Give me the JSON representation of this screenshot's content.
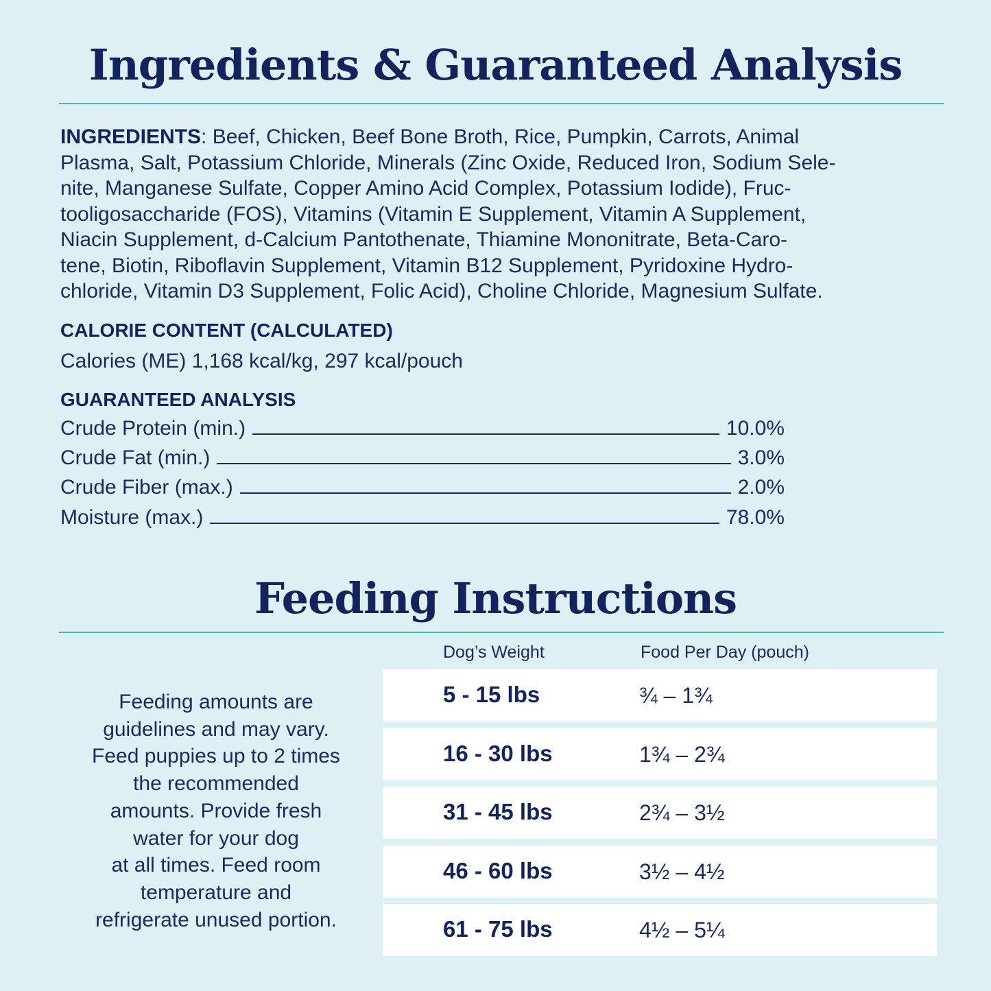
{
  "title": "Ingredients & Guaranteed Analysis",
  "ingredients": {
    "label": "INGREDIENTS",
    "lines": [
      ": Beef, Chicken, Beef Bone Broth, Rice, Pumpkin, Carrots, Animal",
      "Plasma, Salt, Potassium Chloride, Minerals (Zinc Oxide, Reduced Iron, Sodium Sele-",
      "nite, Manganese Sulfate, Copper Amino Acid Complex, Potassium Iodide), Fruc-",
      "tooligosaccharide (FOS), Vitamins (Vitamin E Supplement, Vitamin A Supplement,",
      "Niacin Supplement, d-Calcium Pantothenate, Thiamine Mononitrate, Beta-Caro-",
      "tene, Biotin, Riboflavin Supplement, Vitamin B12 Supplement, Pyridoxine Hydro-",
      "chloride, Vitamin D3 Supplement, Folic Acid), Choline Chloride, Magnesium Sulfate."
    ]
  },
  "calorie": {
    "heading": "CALORIE CONTENT (CALCULATED)",
    "text": "Calories (ME) 1,168 kcal/kg, 297 kcal/pouch"
  },
  "analysis": {
    "heading": "GUARANTEED ANALYSIS",
    "rows": [
      {
        "label": "Crude Protein (min.)",
        "value": "10.0%"
      },
      {
        "label": "Crude Fat (min.)",
        "value": "3.0%"
      },
      {
        "label": "Crude Fiber (max.)",
        "value": "2.0%"
      },
      {
        "label": "Moisture (max.)",
        "value": "78.0%"
      }
    ]
  },
  "feeding": {
    "title": "Feeding Instructions",
    "note": [
      "Feeding amounts are",
      "guidelines and may vary.",
      "Feed puppies up to 2 times",
      "the recommended",
      "amounts. Provide fresh",
      "water for your dog",
      "at all times. Feed room",
      "temperature and",
      "refrigerate unused portion."
    ],
    "table": {
      "headers": [
        "Dog’s Weight",
        "Food Per Day (pouch)"
      ],
      "rows": [
        [
          "5 - 15 lbs",
          "¾ – 1¾"
        ],
        [
          "16 - 30 lbs",
          "1¾ – 2¾"
        ],
        [
          "31 - 45 lbs",
          "2¾ – 3½"
        ],
        [
          "46 - 60 lbs",
          "3½ – 4½"
        ],
        [
          "61 - 75 lbs",
          "4½ – 5¼"
        ]
      ]
    }
  }
}
